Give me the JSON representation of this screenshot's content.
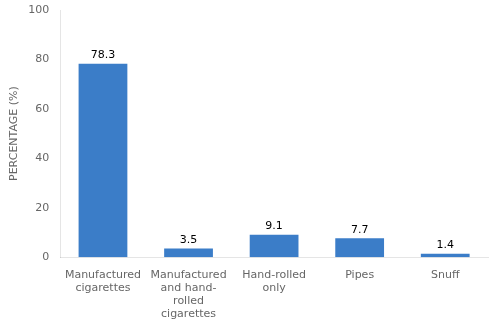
{
  "chart_data": {
    "type": "bar",
    "categories": [
      "Manufactured\ncigarettes",
      "Manufactured\nand hand-\nrolled\ncigarettes",
      "Hand-rolled\nonly",
      "Pipes",
      "Snuff"
    ],
    "values": [
      78.3,
      3.5,
      9.1,
      7.7,
      1.4
    ],
    "color": "#3B7DC8",
    "y_label": "PERCENTAGE (%)",
    "ylim": [
      0,
      100
    ],
    "yticks": [
      0,
      20,
      40,
      60,
      80,
      100
    ],
    "grid": false,
    "data_labels": true
  }
}
